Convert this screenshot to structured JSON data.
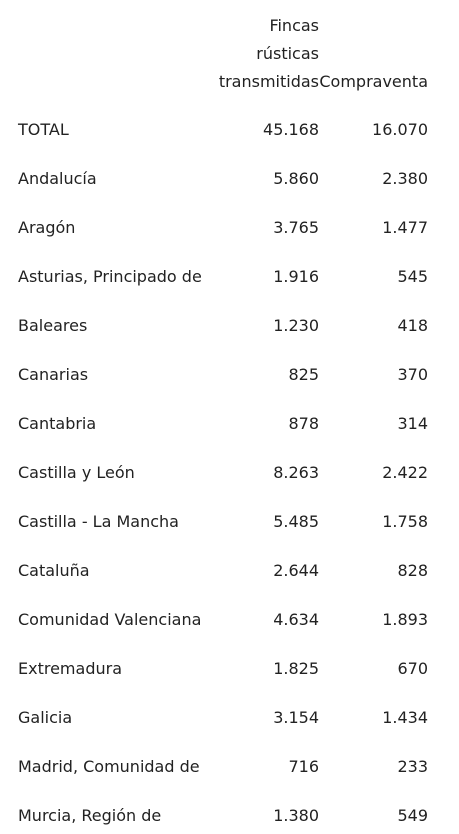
{
  "table": {
    "headers": {
      "region": "",
      "fincas_lines": [
        "Fincas",
        "rústicas",
        "transmitidas"
      ],
      "compraventa": "Compraventa"
    },
    "rows": [
      {
        "region": "TOTAL",
        "fincas": "45.168",
        "compraventa": "16.070"
      },
      {
        "region": "Andalucía",
        "fincas": "5.860",
        "compraventa": "2.380"
      },
      {
        "region": "Aragón",
        "fincas": "3.765",
        "compraventa": "1.477"
      },
      {
        "region": "Asturias, Principado de",
        "fincas": "1.916",
        "compraventa": "545"
      },
      {
        "region": "Baleares",
        "fincas": "1.230",
        "compraventa": "418"
      },
      {
        "region": "Canarias",
        "fincas": "825",
        "compraventa": "370"
      },
      {
        "region": "Cantabria",
        "fincas": "878",
        "compraventa": "314"
      },
      {
        "region": "Castilla y León",
        "fincas": "8.263",
        "compraventa": "2.422"
      },
      {
        "region": "Castilla - La Mancha",
        "fincas": "5.485",
        "compraventa": "1.758"
      },
      {
        "region": "Cataluña",
        "fincas": "2.644",
        "compraventa": "828"
      },
      {
        "region": "Comunidad Valenciana",
        "fincas": "4.634",
        "compraventa": "1.893"
      },
      {
        "region": "Extremadura",
        "fincas": "1.825",
        "compraventa": "670"
      },
      {
        "region": "Galicia",
        "fincas": "3.154",
        "compraventa": "1.434"
      },
      {
        "region": "Madrid, Comunidad de",
        "fincas": "716",
        "compraventa": "233"
      },
      {
        "region": "Murcia, Región de",
        "fincas": "1.380",
        "compraventa": "549"
      }
    ]
  }
}
